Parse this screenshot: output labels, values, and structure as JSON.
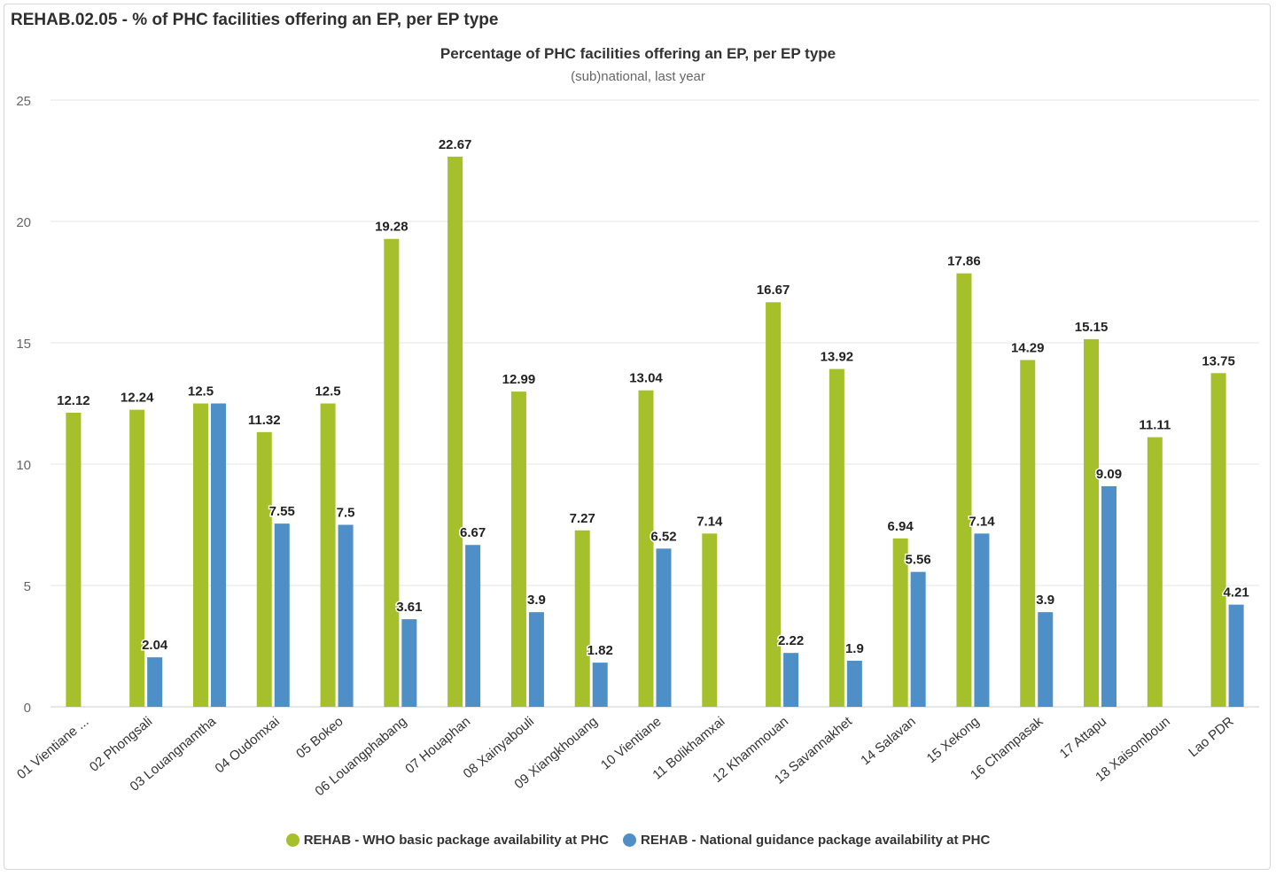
{
  "panel": {
    "title": "REHAB.02.05 - % of PHC facilities offering an EP, per EP type"
  },
  "chart_data": {
    "type": "bar",
    "title": "Percentage of PHC facilities offering an EP, per EP type",
    "subtitle": "(sub)national, last year",
    "ylim": [
      0,
      25
    ],
    "yticks": [
      "0",
      "5",
      "10",
      "15",
      "20",
      "25"
    ],
    "grid": true,
    "legend_position": "bottom-center",
    "categories": [
      "01 Vientiane ...",
      "02 Phongsali",
      "03 Louangnamtha",
      "04 Oudomxai",
      "05 Bokeo",
      "06 Louangphabang",
      "07 Houaphan",
      "08 Xainyabouli",
      "09 Xiangkhouang",
      "10 Vientiane",
      "11 Bolikhamxai",
      "12 Khammouan",
      "13 Savannakhet",
      "14 Salavan",
      "15 Xekong",
      "16 Champasak",
      "17 Attapu",
      "18 Xaisomboun",
      "Lao PDR"
    ],
    "series": [
      {
        "name": "REHAB - WHO basic package availability at PHC",
        "color": "#a5c02a",
        "values": [
          12.12,
          12.24,
          12.5,
          11.32,
          12.5,
          19.28,
          22.67,
          12.99,
          7.27,
          13.04,
          7.14,
          16.67,
          13.92,
          6.94,
          17.86,
          14.29,
          15.15,
          11.11,
          13.75
        ],
        "labels": [
          "12.12",
          "12.24",
          "12.5",
          "11.32",
          "12.5",
          "19.28",
          "22.67",
          "12.99",
          "7.27",
          "13.04",
          "7.14",
          "16.67",
          "13.92",
          "6.94",
          "17.86",
          "14.29",
          "15.15",
          "11.11",
          "13.75"
        ]
      },
      {
        "name": "REHAB - National guidance package availability at PHC",
        "color": "#4f8fc8",
        "values": [
          null,
          2.04,
          12.5,
          7.55,
          7.5,
          3.61,
          6.67,
          3.9,
          1.82,
          6.52,
          null,
          2.22,
          1.9,
          5.56,
          7.14,
          3.9,
          9.09,
          null,
          4.21
        ],
        "labels": [
          "",
          "2.04",
          "",
          "7.55",
          "7.5",
          "3.61",
          "6.67",
          "3.9",
          "1.82",
          "6.52",
          "",
          "2.22",
          "1.9",
          "5.56",
          "7.14",
          "3.9",
          "9.09",
          "",
          "4.21"
        ]
      }
    ]
  }
}
